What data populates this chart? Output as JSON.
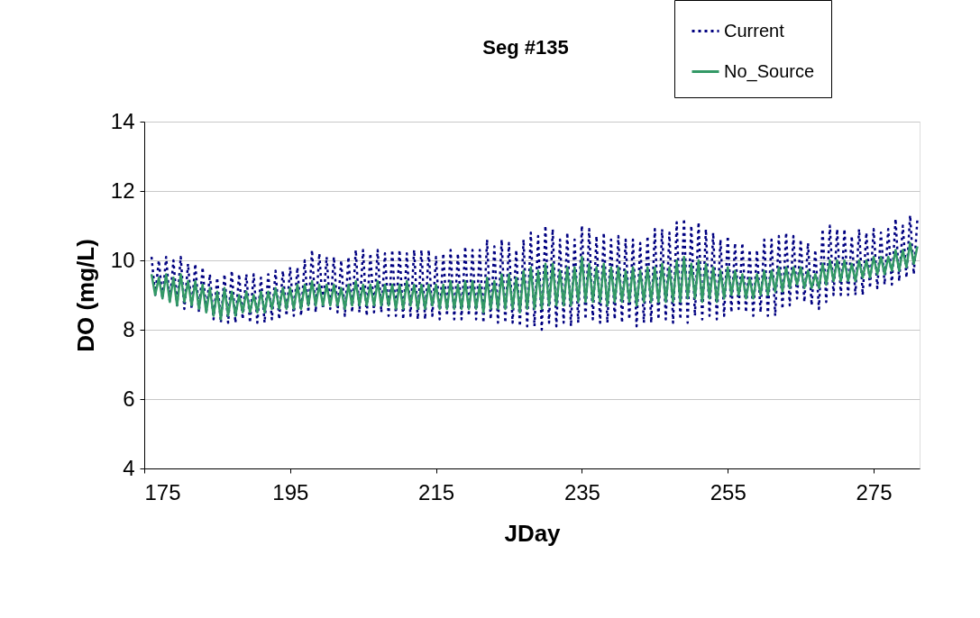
{
  "chart_data": {
    "type": "line",
    "title": "Seg #135",
    "xlabel": "JDay",
    "ylabel": "DO (mg/L)",
    "x": [
      176,
      176.5,
      177,
      177.5,
      178,
      178.5,
      179,
      179.5,
      180,
      180.5,
      181,
      181.5,
      182,
      182.5,
      183,
      183.5,
      184,
      184.5,
      185,
      185.5,
      186,
      186.5,
      187,
      187.5,
      188,
      188.5,
      189,
      189.5,
      190,
      190.5,
      191,
      191.5,
      192,
      192.5,
      193,
      193.5,
      194,
      194.5,
      195,
      195.5,
      196,
      196.5,
      197,
      197.5,
      198,
      198.5,
      199,
      199.5,
      200,
      200.5,
      201,
      201.5,
      202,
      202.5,
      203,
      203.5,
      204,
      204.5,
      205,
      205.5,
      206,
      206.5,
      207,
      207.5,
      208,
      208.5,
      209,
      209.5,
      210,
      210.5,
      211,
      211.5,
      212,
      212.5,
      213,
      213.5,
      214,
      214.5,
      215,
      215.5,
      216,
      216.5,
      217,
      217.5,
      218,
      218.5,
      219,
      219.5,
      220,
      220.5,
      221,
      221.5,
      222,
      222.5,
      223,
      223.5,
      224,
      224.5,
      225,
      225.5,
      226,
      226.5,
      227,
      227.5,
      228,
      228.5,
      229,
      229.5,
      230,
      230.5,
      231,
      231.5,
      232,
      232.5,
      233,
      233.5,
      234,
      234.5,
      235,
      235.5,
      236,
      236.5,
      237,
      237.5,
      238,
      238.5,
      239,
      239.5,
      240,
      240.5,
      241,
      241.5,
      242,
      242.5,
      243,
      243.5,
      244,
      244.5,
      245,
      245.5,
      246,
      246.5,
      247,
      247.5,
      248,
      248.5,
      249,
      249.5,
      250,
      250.5,
      251,
      251.5,
      252,
      252.5,
      253,
      253.5,
      254,
      254.5,
      255,
      255.5,
      256,
      256.5,
      257,
      257.5,
      258,
      258.5,
      259,
      259.5,
      260,
      260.5,
      261,
      261.5,
      262,
      262.5,
      263,
      263.5,
      264,
      264.5,
      265,
      265.5,
      266,
      266.5,
      267,
      267.5,
      268,
      268.5,
      269,
      269.5,
      270,
      270.5,
      271,
      271.5,
      272,
      272.5,
      273,
      273.5,
      274,
      274.5,
      275,
      275.5,
      276,
      276.5,
      277,
      277.5,
      278,
      278.5,
      279,
      279.5,
      280,
      280.5,
      281
    ],
    "series": [
      {
        "name": "Current",
        "color": "#000080",
        "line_style": "dotted",
        "values": [
          10.1,
          9.0,
          10.0,
          8.9,
          10.1,
          8.8,
          10.0,
          8.7,
          10.1,
          8.6,
          9.9,
          8.6,
          9.9,
          8.5,
          9.8,
          8.5,
          9.6,
          8.3,
          9.5,
          8.2,
          9.6,
          8.2,
          9.7,
          8.2,
          9.6,
          8.3,
          9.6,
          8.2,
          9.6,
          8.2,
          9.5,
          8.2,
          9.6,
          8.3,
          9.7,
          8.3,
          9.7,
          8.4,
          9.8,
          8.4,
          9.8,
          8.4,
          10.0,
          8.5,
          10.3,
          8.5,
          10.2,
          8.6,
          10.1,
          8.6,
          10.1,
          8.5,
          10.0,
          8.4,
          10.1,
          8.5,
          10.3,
          8.5,
          10.3,
          8.4,
          10.2,
          8.5,
          10.3,
          8.5,
          10.2,
          8.4,
          10.3,
          8.4,
          10.3,
          8.3,
          10.2,
          8.4,
          10.3,
          8.3,
          10.3,
          8.3,
          10.3,
          8.4,
          10.1,
          8.3,
          10.2,
          8.4,
          10.3,
          8.3,
          10.2,
          8.3,
          10.4,
          8.4,
          10.3,
          8.3,
          10.3,
          8.2,
          10.6,
          8.3,
          10.4,
          8.2,
          10.6,
          8.2,
          10.5,
          8.2,
          10.3,
          8.1,
          10.6,
          8.1,
          10.8,
          8.1,
          10.7,
          8.0,
          11.0,
          8.2,
          10.9,
          8.1,
          10.6,
          8.2,
          10.8,
          8.1,
          10.6,
          8.2,
          11.0,
          8.3,
          10.9,
          8.3,
          10.7,
          8.2,
          10.8,
          8.2,
          10.6,
          8.3,
          10.7,
          8.2,
          10.6,
          8.3,
          10.6,
          8.1,
          10.5,
          8.2,
          10.7,
          8.2,
          10.9,
          8.3,
          10.9,
          8.3,
          10.8,
          8.2,
          11.1,
          8.3,
          11.2,
          8.2,
          11.0,
          8.4,
          11.1,
          8.3,
          10.9,
          8.4,
          10.8,
          8.3,
          10.6,
          8.4,
          10.7,
          8.5,
          10.5,
          8.6,
          10.5,
          8.5,
          10.3,
          8.4,
          10.3,
          8.5,
          10.6,
          8.4,
          10.6,
          8.4,
          10.7,
          8.6,
          10.8,
          8.7,
          10.7,
          8.9,
          10.6,
          8.8,
          10.5,
          8.7,
          10.3,
          8.6,
          10.9,
          8.8,
          11.0,
          9.0,
          10.9,
          9.0,
          10.9,
          9.0,
          10.7,
          9.0,
          10.9,
          9.0,
          10.8,
          9.2,
          10.9,
          9.2,
          10.8,
          9.3,
          10.9,
          9.3,
          11.2,
          9.4,
          11.0,
          9.5,
          11.3,
          9.6,
          11.2
        ]
      },
      {
        "name": "No_Source",
        "color": "#339966",
        "line_style": "solid",
        "values": [
          9.6,
          9.0,
          9.5,
          8.9,
          9.6,
          8.8,
          9.5,
          8.7,
          9.6,
          8.8,
          9.4,
          8.7,
          9.4,
          8.6,
          9.3,
          8.5,
          9.2,
          8.4,
          9.1,
          8.3,
          9.2,
          8.4,
          9.1,
          8.4,
          9.0,
          8.5,
          9.1,
          8.5,
          9.0,
          8.5,
          9.1,
          8.5,
          9.1,
          8.6,
          9.2,
          8.6,
          9.2,
          8.6,
          9.2,
          8.6,
          9.3,
          8.6,
          9.3,
          8.7,
          9.4,
          8.7,
          9.3,
          8.7,
          9.3,
          8.7,
          9.3,
          8.7,
          9.2,
          8.6,
          9.3,
          8.7,
          9.4,
          8.7,
          9.3,
          8.7,
          9.3,
          8.7,
          9.4,
          8.7,
          9.3,
          8.7,
          9.3,
          8.6,
          9.3,
          8.6,
          9.4,
          8.7,
          9.3,
          8.6,
          9.3,
          8.6,
          9.3,
          8.7,
          9.3,
          8.6,
          9.3,
          8.6,
          9.4,
          8.6,
          9.3,
          8.6,
          9.4,
          8.6,
          9.4,
          8.6,
          9.3,
          8.5,
          9.5,
          8.6,
          9.4,
          8.6,
          9.6,
          8.6,
          9.6,
          8.6,
          9.5,
          8.5,
          9.7,
          8.6,
          9.8,
          8.6,
          9.7,
          8.6,
          9.9,
          8.7,
          9.9,
          8.7,
          9.7,
          8.7,
          9.8,
          8.7,
          9.8,
          8.8,
          10.1,
          8.8,
          9.9,
          8.8,
          9.8,
          8.8,
          9.9,
          8.7,
          9.8,
          8.8,
          9.8,
          8.8,
          9.7,
          8.8,
          9.8,
          8.7,
          9.7,
          8.8,
          9.8,
          8.8,
          9.8,
          8.8,
          9.9,
          8.8,
          9.8,
          8.8,
          10.0,
          8.8,
          10.1,
          8.9,
          9.9,
          8.9,
          10.0,
          8.8,
          9.9,
          8.9,
          9.8,
          8.8,
          9.7,
          8.9,
          9.8,
          9.0,
          9.7,
          9.0,
          9.6,
          8.9,
          9.5,
          8.9,
          9.6,
          9.0,
          9.7,
          9.0,
          9.7,
          9.1,
          9.8,
          9.1,
          9.8,
          9.2,
          9.8,
          9.3,
          9.8,
          9.2,
          9.7,
          9.2,
          9.6,
          9.2,
          9.9,
          9.3,
          10.0,
          9.4,
          10.0,
          9.4,
          10.0,
          9.4,
          9.9,
          9.4,
          10.0,
          9.5,
          10.0,
          9.5,
          10.1,
          9.6,
          10.1,
          9.6,
          10.1,
          9.7,
          10.3,
          9.7,
          10.3,
          9.8,
          10.5,
          9.9,
          10.4
        ]
      }
    ],
    "xlim": [
      175,
      281.3
    ],
    "xticks": [
      175,
      195,
      215,
      235,
      255,
      275
    ],
    "ylim": [
      4,
      14
    ],
    "yticks": [
      4,
      6,
      8,
      10,
      12,
      14
    ],
    "grid": "y",
    "legend": "top right"
  }
}
